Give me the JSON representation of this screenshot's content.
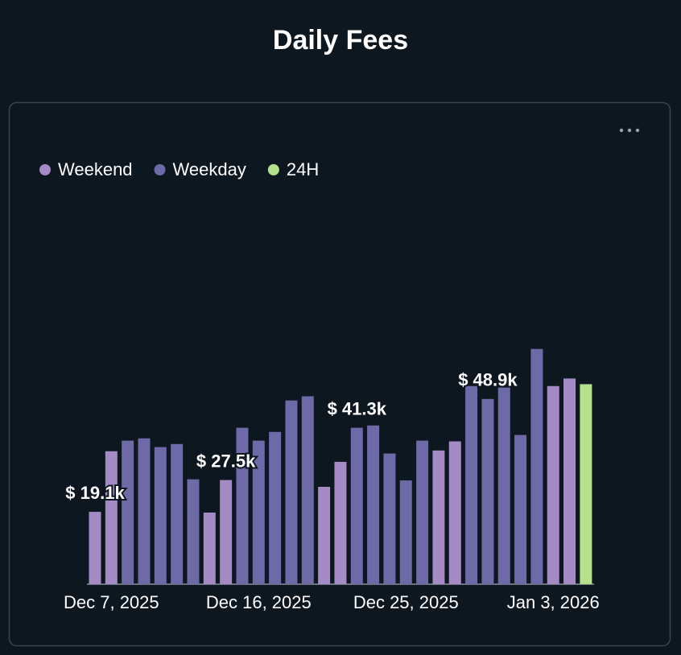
{
  "chart_data": {
    "type": "bar",
    "title": "Daily Fees",
    "categories": [
      null,
      "Dec 7, 2025",
      null,
      null,
      null,
      null,
      null,
      null,
      null,
      null,
      "Dec 16, 2025",
      null,
      null,
      null,
      null,
      null,
      null,
      null,
      null,
      "Dec 25, 2025",
      null,
      null,
      null,
      null,
      null,
      null,
      null,
      null,
      "Jan 3, 2026",
      null,
      null
    ],
    "series": [
      {
        "name": "Weekend",
        "color": "#a58bc6",
        "values": [
          19.1,
          35.1,
          null,
          null,
          null,
          null,
          null,
          18.9,
          27.5,
          null,
          null,
          null,
          null,
          null,
          25.7,
          32.3,
          null,
          null,
          null,
          null,
          null,
          35.3,
          37.7,
          null,
          null,
          null,
          null,
          null,
          52.3,
          54.3,
          null
        ],
        "value_labels": [
          "$ 19.1k",
          null,
          null,
          null,
          null,
          null,
          null,
          null,
          "$ 27.5k",
          null,
          null,
          null,
          null,
          null,
          null,
          null,
          null,
          null,
          null,
          null,
          null,
          null,
          null,
          null,
          null,
          null,
          null,
          null,
          null,
          null,
          null
        ]
      },
      {
        "name": "Weekday",
        "color": "#6e6aa8",
        "values": [
          null,
          null,
          37.9,
          38.5,
          36.2,
          37.0,
          27.7,
          null,
          null,
          41.3,
          37.9,
          40.2,
          48.5,
          49.6,
          null,
          null,
          41.3,
          41.9,
          34.5,
          27.4,
          37.9,
          null,
          null,
          52.3,
          48.9,
          51.9,
          39.4,
          62.1,
          null,
          null,
          null
        ],
        "value_labels": [
          null,
          null,
          null,
          null,
          null,
          null,
          null,
          null,
          null,
          null,
          null,
          null,
          null,
          null,
          null,
          null,
          "$ 41.3k",
          null,
          null,
          null,
          null,
          null,
          null,
          null,
          "$ 48.9k",
          null,
          null,
          null,
          null,
          null,
          null
        ]
      },
      {
        "name": "24H",
        "color": "#b5e08c",
        "values": [
          null,
          null,
          null,
          null,
          null,
          null,
          null,
          null,
          null,
          null,
          null,
          null,
          null,
          null,
          null,
          null,
          null,
          null,
          null,
          null,
          null,
          null,
          null,
          null,
          null,
          null,
          null,
          null,
          null,
          null,
          52.8
        ]
      }
    ],
    "ylim": [
      0,
      65
    ]
  }
}
